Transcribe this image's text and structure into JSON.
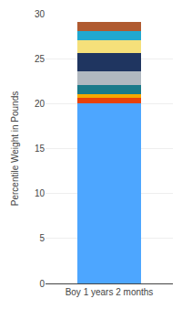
{
  "chart_data": {
    "type": "bar",
    "stacked": true,
    "ylabel": "Percentile Weight in Pounds",
    "categories": [
      "Boy 1 years 2 months"
    ],
    "series": [
      {
        "color": "#4DA6FF",
        "values": [
          20.0
        ]
      },
      {
        "color": "#E8420A",
        "values": [
          0.6
        ]
      },
      {
        "color": "#F5A800",
        "values": [
          0.5
        ]
      },
      {
        "color": "#1A7A8A",
        "values": [
          1.0
        ]
      },
      {
        "color": "#B0B8C0",
        "values": [
          1.5
        ]
      },
      {
        "color": "#1F3560",
        "values": [
          2.0
        ]
      },
      {
        "color": "#F5E07A",
        "values": [
          1.5
        ]
      },
      {
        "color": "#20A8D0",
        "values": [
          1.0
        ]
      },
      {
        "color": "#B05A30",
        "values": [
          1.0
        ]
      }
    ],
    "ylim": [
      0,
      30
    ],
    "yticks": [
      0,
      5,
      10,
      15,
      20,
      25,
      30
    ],
    "grid": true
  }
}
